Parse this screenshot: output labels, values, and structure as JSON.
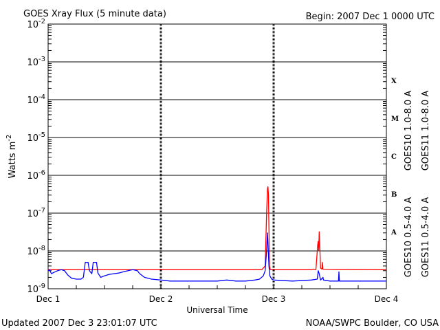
{
  "chart_data": {
    "type": "line",
    "title": "GOES Xray Flux (5 minute data)",
    "subtitle": "Begin:  2007 Dec 1 0000 UTC",
    "xlabel": "Universal Time",
    "ylabel": "Watts m",
    "ylabel_sup": "-2",
    "footer_left": "Updated 2007 Dec  3 23:01:07 UTC",
    "footer_right": "NOAA/SWPC Boulder, CO USA",
    "x_unit": "hours since 2007 Dec 1 0000 UTC",
    "x_range": [
      0,
      72
    ],
    "x_ticks": [
      {
        "value": 0,
        "label": "Dec 1"
      },
      {
        "value": 24,
        "label": "Dec 2"
      },
      {
        "value": 48,
        "label": "Dec 3"
      },
      {
        "value": 72,
        "label": "Dec 4"
      }
    ],
    "y_scale": "log",
    "ylim": [
      1e-09,
      0.01
    ],
    "y_ticks": [
      {
        "base": "10",
        "exp": "-9"
      },
      {
        "base": "10",
        "exp": "-8"
      },
      {
        "base": "10",
        "exp": "-7"
      },
      {
        "base": "10",
        "exp": "-6"
      },
      {
        "base": "10",
        "exp": "-5"
      },
      {
        "base": "10",
        "exp": "-4"
      },
      {
        "base": "10",
        "exp": "-3"
      },
      {
        "base": "10",
        "exp": "-2"
      }
    ],
    "class_labels": [
      {
        "label": "X",
        "y": 0.00032
      },
      {
        "label": "M",
        "y": 3.2e-05
      },
      {
        "label": "C",
        "y": 3.2e-06
      },
      {
        "label": "B",
        "y": 3.2e-07
      },
      {
        "label": "A",
        "y": 3.2e-08
      }
    ],
    "series": [
      {
        "name": "GOES11 1.0-8.0 A",
        "color": "#ff0000",
        "points": [
          [
            0,
            3.2e-09
          ],
          [
            45,
            3.2e-09
          ],
          [
            45.5,
            3.2e-09
          ],
          [
            46.2,
            4e-09
          ],
          [
            46.5,
            1e-07
          ],
          [
            46.7,
            4.5e-07
          ],
          [
            46.8,
            5e-07
          ],
          [
            46.9,
            3e-07
          ],
          [
            47.0,
            4e-08
          ],
          [
            47.1,
            4e-09
          ],
          [
            47.3,
            3.2e-09
          ],
          [
            56,
            3.2e-09
          ],
          [
            56.5,
            3.3e-09
          ],
          [
            57.0,
            3.2e-09
          ],
          [
            57.4,
            1.5e-08
          ],
          [
            57.5,
            1.8e-08
          ],
          [
            57.6,
            1e-08
          ],
          [
            57.7,
            3.2e-08
          ],
          [
            57.8,
            1.5e-08
          ],
          [
            58.0,
            3.5e-09
          ],
          [
            58.3,
            3.3e-09
          ],
          [
            58.4,
            5e-09
          ],
          [
            58.5,
            3.3e-09
          ],
          [
            72,
            3.2e-09
          ]
        ]
      },
      {
        "name": "GOES10 1.0-8.0 A",
        "color": "#9933cc",
        "points": []
      },
      {
        "name": "GOES11 0.5-4.0 A",
        "color": "#0000ff",
        "points": [
          [
            0,
            3e-09
          ],
          [
            0.3,
            3.2e-09
          ],
          [
            0.7,
            2.5e-09
          ],
          [
            1.2,
            2.7e-09
          ],
          [
            2,
            3e-09
          ],
          [
            2.8,
            3.2e-09
          ],
          [
            3.5,
            3e-09
          ],
          [
            4.2,
            2.3e-09
          ],
          [
            5,
            1.9e-09
          ],
          [
            6,
            1.8e-09
          ],
          [
            7,
            1.8e-09
          ],
          [
            7.5,
            2e-09
          ],
          [
            7.9,
            5e-09
          ],
          [
            8.5,
            5e-09
          ],
          [
            8.8,
            3e-09
          ],
          [
            9.3,
            2.5e-09
          ],
          [
            9.6,
            5e-09
          ],
          [
            10.3,
            5e-09
          ],
          [
            10.6,
            2.6e-09
          ],
          [
            11.2,
            2e-09
          ],
          [
            12,
            2.2e-09
          ],
          [
            13,
            2.4e-09
          ],
          [
            14,
            2.5e-09
          ],
          [
            15,
            2.6e-09
          ],
          [
            16,
            2.8e-09
          ],
          [
            17,
            3e-09
          ],
          [
            18,
            3.2e-09
          ],
          [
            19,
            3e-09
          ],
          [
            19.5,
            2.5e-09
          ],
          [
            20.5,
            2e-09
          ],
          [
            22,
            1.8e-09
          ],
          [
            24,
            1.7e-09
          ],
          [
            26,
            1.6e-09
          ],
          [
            28,
            1.6e-09
          ],
          [
            30,
            1.6e-09
          ],
          [
            32,
            1.6e-09
          ],
          [
            34,
            1.6e-09
          ],
          [
            36,
            1.6e-09
          ],
          [
            38,
            1.7e-09
          ],
          [
            40,
            1.6e-09
          ],
          [
            42,
            1.6e-09
          ],
          [
            44,
            1.7e-09
          ],
          [
            45,
            1.8e-09
          ],
          [
            45.8,
            2.2e-09
          ],
          [
            46.2,
            3e-09
          ],
          [
            46.5,
            1e-08
          ],
          [
            46.7,
            3e-08
          ],
          [
            46.8,
            1.5e-08
          ],
          [
            47.0,
            4e-09
          ],
          [
            47.2,
            2.2e-09
          ],
          [
            47.6,
            1.8e-09
          ],
          [
            48,
            1.7e-09
          ],
          [
            52,
            1.6e-09
          ],
          [
            56,
            1.7e-09
          ],
          [
            57.3,
            1.8e-09
          ],
          [
            57.5,
            3e-09
          ],
          [
            57.7,
            2.5e-09
          ],
          [
            58,
            1.7e-09
          ],
          [
            58.5,
            2e-09
          ],
          [
            58.6,
            1.7e-09
          ],
          [
            60,
            1.6e-09
          ],
          [
            61.8,
            1.6e-09
          ],
          [
            61.9,
            2.8e-09
          ],
          [
            62.0,
            1.6e-09
          ],
          [
            64,
            1.6e-09
          ],
          [
            68,
            1.6e-09
          ],
          [
            72,
            1.6e-09
          ]
        ]
      },
      {
        "name": "GOES10 0.5-4.0 A",
        "color": "#ff9900",
        "points": []
      }
    ],
    "grid": true,
    "legend_position": "right"
  }
}
